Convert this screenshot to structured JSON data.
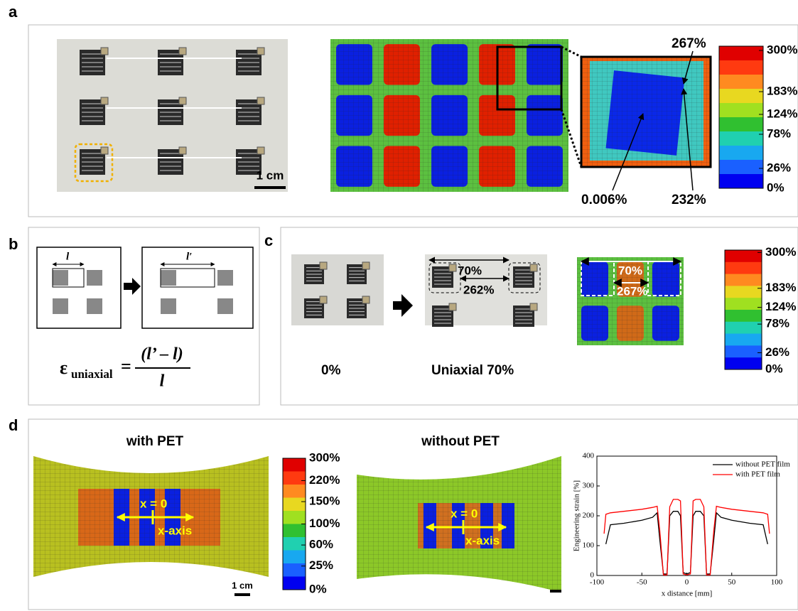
{
  "panels": {
    "a": {
      "label": "a",
      "scale_bar": "1 cm",
      "colorbar": [
        "300%",
        "183%",
        "124%",
        "78%",
        "26%",
        "0%"
      ],
      "annotations": [
        "267%",
        "0.006%",
        "232%"
      ]
    },
    "b": {
      "label": "b",
      "length": "l",
      "length_stretched": "l′",
      "formula": {
        "symbol": "ε",
        "subscript": "uniaxial",
        "equals": "=",
        "numerator": "(l’ – l)",
        "denominator": "l"
      }
    },
    "c": {
      "label": "c",
      "captions": [
        "0%",
        "Uniaxial 70%"
      ],
      "photo_labels": [
        "70%",
        "262%"
      ],
      "fem_labels": [
        "70%",
        "267%"
      ],
      "colorbar": [
        "300%",
        "183%",
        "124%",
        "78%",
        "26%",
        "0%"
      ]
    },
    "d": {
      "label": "d",
      "titles": [
        "with PET",
        "without PET"
      ],
      "colorbar": [
        "300%",
        "220%",
        "150%",
        "100%",
        "60%",
        "25%",
        "0%"
      ],
      "overlay": [
        "x = 0",
        "x-axis"
      ],
      "scale_bar": "1 cm"
    }
  },
  "chart_data": {
    "type": "line",
    "xlabel": "x distance [mm]",
    "ylabel": "Engineering strain [%]",
    "x": [
      -92,
      -90,
      -85,
      -70,
      -50,
      -38,
      -33,
      -30,
      -26,
      -22,
      -19,
      -15,
      -10,
      -7,
      -4,
      0,
      4,
      7,
      10,
      15,
      19,
      22,
      26,
      30,
      33,
      38,
      50,
      70,
      85,
      90,
      92
    ],
    "series": [
      {
        "name": "without PET film",
        "color": "#000000",
        "values": [
          null,
          105,
          170,
          175,
          185,
          195,
          210,
          120,
          5,
          5,
          200,
          215,
          215,
          200,
          10,
          5,
          10,
          200,
          215,
          215,
          200,
          5,
          5,
          120,
          210,
          195,
          185,
          175,
          170,
          105,
          null
        ]
      },
      {
        "name": "with PET film",
        "color": "#ff0000",
        "values": [
          140,
          205,
          210,
          215,
          222,
          228,
          232,
          150,
          2,
          2,
          230,
          255,
          255,
          250,
          5,
          2,
          5,
          250,
          255,
          255,
          230,
          2,
          2,
          150,
          232,
          228,
          222,
          215,
          210,
          205,
          140
        ]
      }
    ],
    "xlim": [
      -100,
      100
    ],
    "xticks": [
      -100,
      -50,
      0,
      50,
      100
    ],
    "ylim": [
      0,
      400
    ],
    "yticks": [
      0,
      100,
      200,
      300,
      400
    ],
    "legend": "upper right"
  }
}
